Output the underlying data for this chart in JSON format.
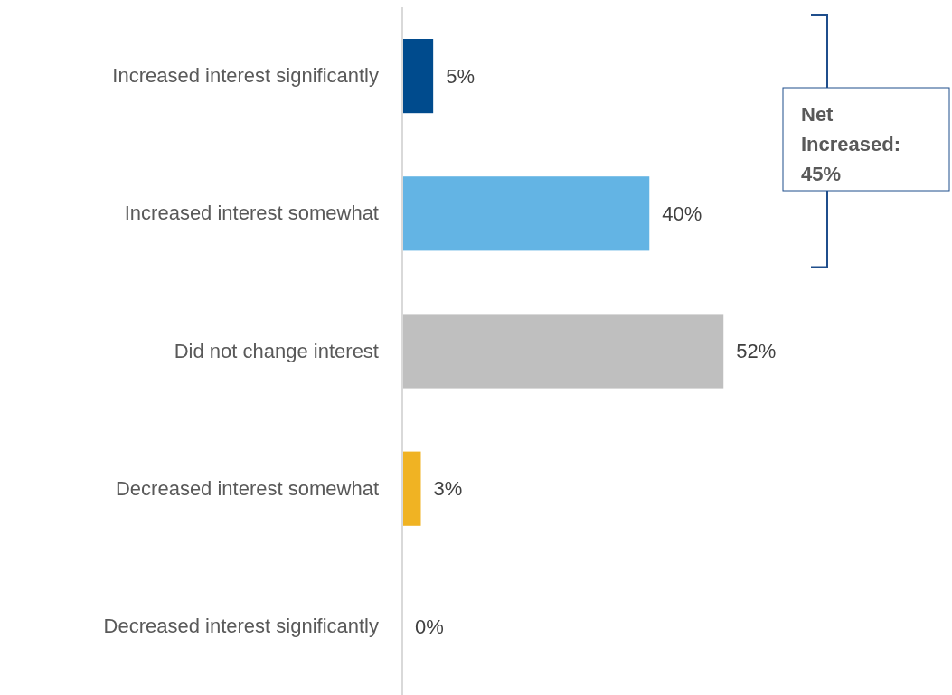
{
  "chart_data": {
    "type": "bar",
    "orientation": "horizontal",
    "categories": [
      "Increased interest significantly",
      "Increased interest somewhat",
      "Did not change interest",
      "Decreased interest somewhat",
      "Decreased interest significantly"
    ],
    "values": [
      5,
      40,
      52,
      3,
      0
    ],
    "colors": [
      "#004b8d",
      "#63b4e4",
      "#bfbfbf",
      "#f0b323",
      "#7f7f7f"
    ],
    "value_labels": [
      "5%",
      "40%",
      "52%",
      "3%",
      "0%"
    ],
    "xlim": [
      0,
      89
    ],
    "tick_labels": "y",
    "annotations": [
      "Net Increased: 45%"
    ]
  }
}
